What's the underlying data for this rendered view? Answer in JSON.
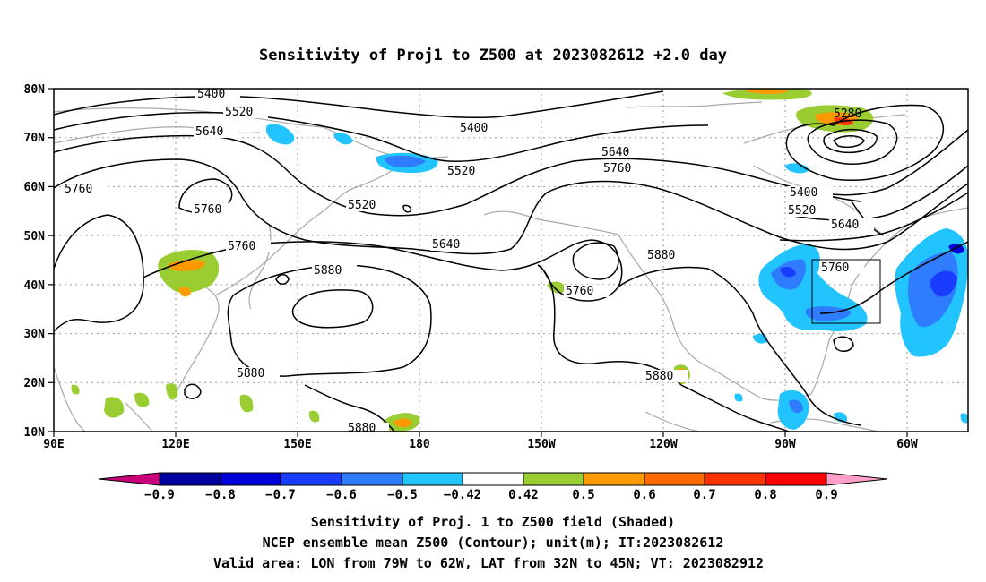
{
  "title": "Sensitivity of Proj1 to Z500 at 2023082612 +2.0 day",
  "lat_labels": [
    "80N",
    "70N",
    "60N",
    "50N",
    "40N",
    "30N",
    "20N",
    "10N"
  ],
  "lon_labels": [
    "90E",
    "120E",
    "150E",
    "180",
    "150W",
    "120W",
    "90W",
    "60W"
  ],
  "contour_labels": [
    {
      "text": "5400",
      "id": "a"
    },
    {
      "text": "5520",
      "id": "b"
    },
    {
      "text": "5640",
      "id": "c"
    },
    {
      "text": "5760",
      "id": "d"
    },
    {
      "text": "5760",
      "id": "e"
    },
    {
      "text": "5760",
      "id": "f"
    },
    {
      "text": "5880",
      "id": "g"
    },
    {
      "text": "5880",
      "id": "h"
    },
    {
      "text": "5880",
      "id": "i"
    },
    {
      "text": "5520",
      "id": "j"
    },
    {
      "text": "5520",
      "id": "k"
    },
    {
      "text": "5400",
      "id": "l"
    },
    {
      "text": "5640",
      "id": "m"
    },
    {
      "text": "5760",
      "id": "n"
    },
    {
      "text": "5640",
      "id": "o"
    },
    {
      "text": "5760",
      "id": "p"
    },
    {
      "text": "5880",
      "id": "q"
    },
    {
      "text": "5880",
      "id": "r"
    },
    {
      "text": "5280",
      "id": "s"
    },
    {
      "text": "5400",
      "id": "t"
    },
    {
      "text": "5520",
      "id": "u"
    },
    {
      "text": "5640",
      "id": "v"
    },
    {
      "text": "5760",
      "id": "w"
    }
  ],
  "colorbar": {
    "labels": [
      "−0.9",
      "−0.8",
      "−0.7",
      "−0.6",
      "−0.5",
      "−0.42",
      "0.42",
      "0.5",
      "0.6",
      "0.7",
      "0.8",
      "0.9"
    ],
    "colors": [
      "#c8007a",
      "#0000a0",
      "#0000d8",
      "#1a3cff",
      "#2f7cff",
      "#22c4ff",
      "#ffffff",
      "#9acd32",
      "#ff9900",
      "#ff6a00",
      "#ff3300",
      "#ff0000",
      "#ff9ec7"
    ]
  },
  "caption": [
    "Sensitivity of Proj. 1 to Z500 field (Shaded)",
    "NCEP ensemble mean Z500 (Contour); unit(m); IT:2023082612",
    "Valid area: LON from 79W to 62W, LAT from 32N to 45N; VT: 2023082912"
  ]
}
